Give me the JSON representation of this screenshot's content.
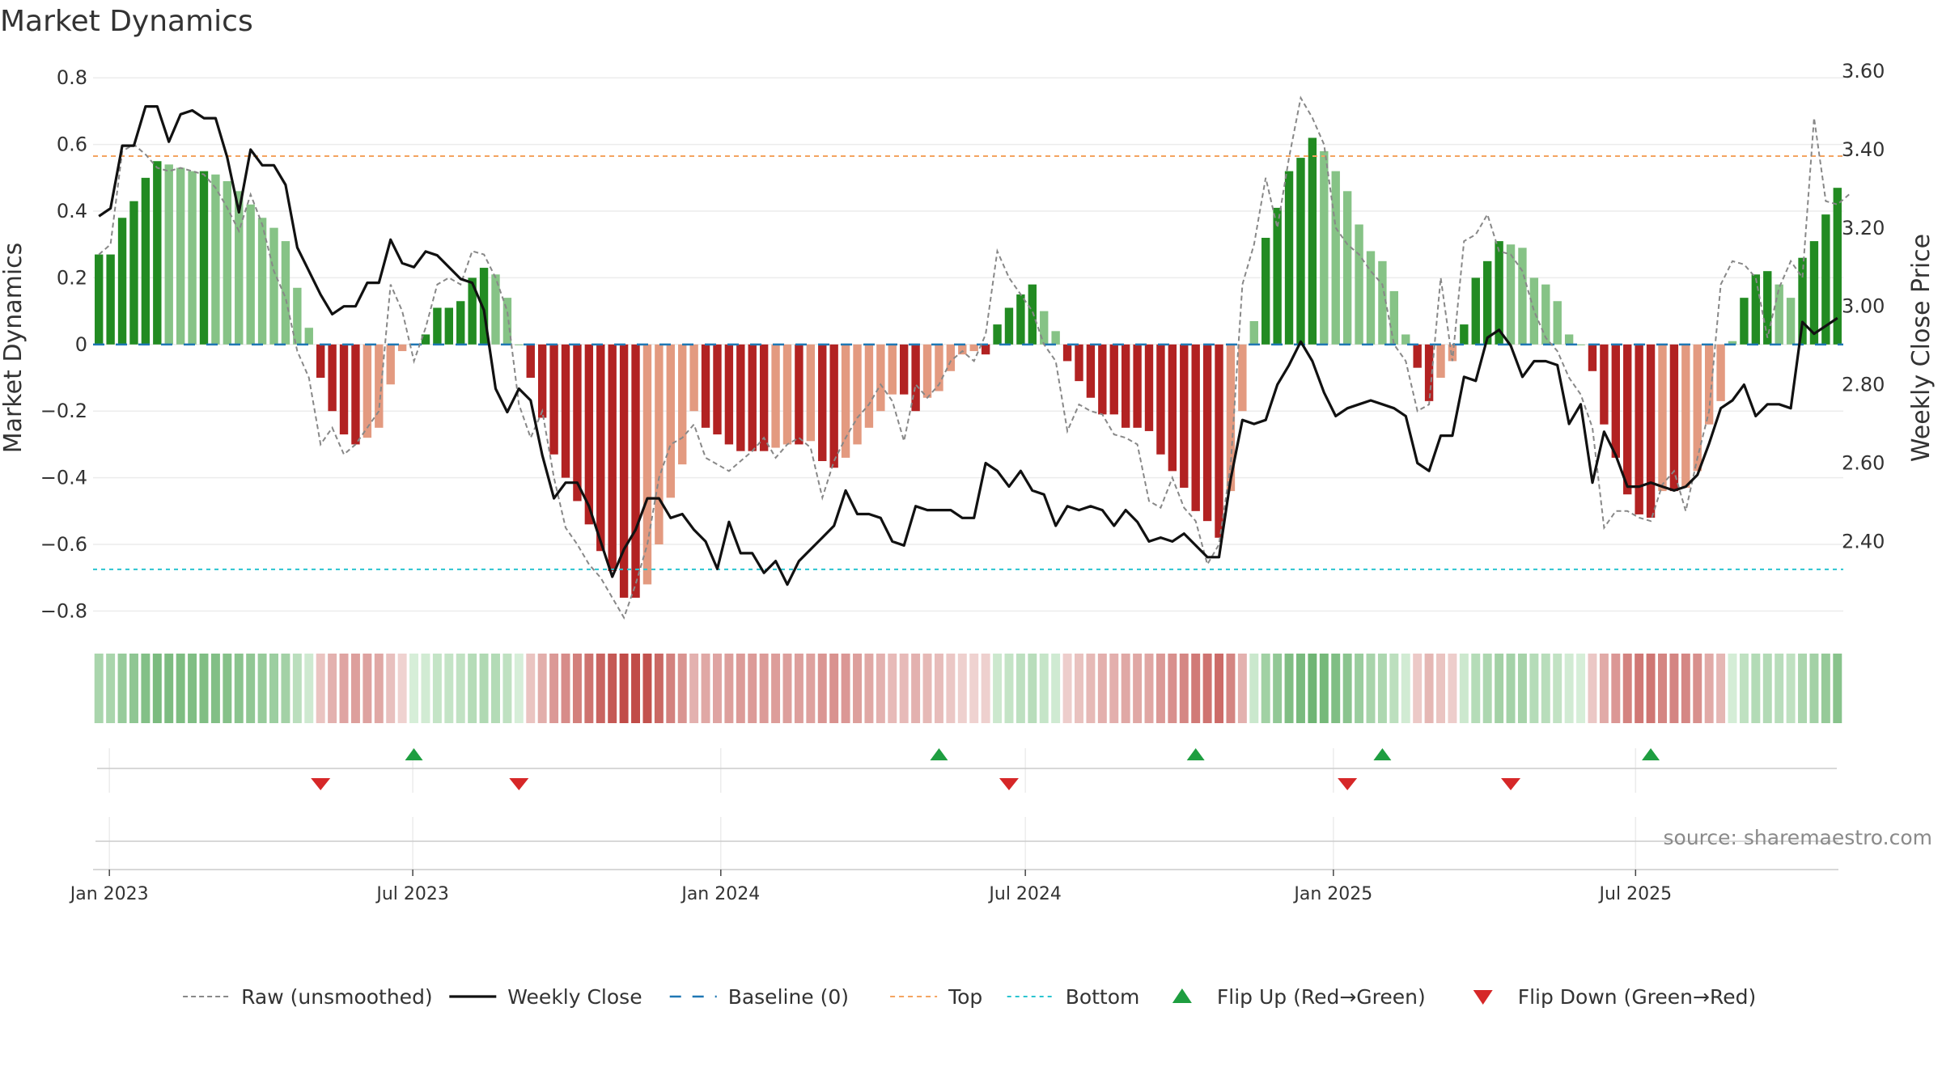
{
  "chart_data": {
    "type": "bar",
    "title": "Market Dynamics",
    "ylabel_left": "Market Dynamics",
    "ylabel_right": "Weekly Close Price",
    "xlabel": "",
    "ylim": [
      -0.85,
      0.82
    ],
    "ylim_right": [
      2.18,
      3.6
    ],
    "yticks_left": [
      0.8,
      0.6,
      0.4,
      0.2,
      0,
      -0.2,
      -0.4,
      -0.6,
      -0.8
    ],
    "yticks_left_labels": [
      "0.8",
      "0.6",
      "0.4",
      "0.2",
      "0",
      "−0.2",
      "−0.4",
      "−0.6",
      "−0.8"
    ],
    "yticks_right": [
      3.6,
      3.4,
      3.2,
      3.0,
      2.8,
      2.6,
      2.4
    ],
    "yticks_right_labels": [
      "3.60",
      "3.40",
      "3.20",
      "3.00",
      "2.80",
      "2.60",
      "2.40"
    ],
    "x_ticks": [
      {
        "label": "Jan 2023",
        "week": 1.4
      },
      {
        "label": "Jul 2023",
        "week": 27.4
      },
      {
        "label": "Jan 2024",
        "week": 53.8
      },
      {
        "label": "Jul 2024",
        "week": 79.9
      },
      {
        "label": "Jan 2025",
        "week": 106.3
      },
      {
        "label": "Jul 2025",
        "week": 132.2
      }
    ],
    "top_threshold": 0.565,
    "bottom_threshold": -0.675,
    "baseline": 0,
    "series": [
      {
        "name": "Market Dynamics (smoothed)",
        "values": [
          0.27,
          0.27,
          0.38,
          0.43,
          0.5,
          0.55,
          0.54,
          0.53,
          0.52,
          0.52,
          0.51,
          0.49,
          0.46,
          0.42,
          0.38,
          0.35,
          0.31,
          0.17,
          0.05,
          -0.1,
          -0.2,
          -0.27,
          -0.3,
          -0.28,
          -0.25,
          -0.12,
          -0.02,
          0.0,
          0.03,
          0.11,
          0.11,
          0.13,
          0.2,
          0.23,
          0.21,
          0.14,
          0.0,
          -0.1,
          -0.22,
          -0.33,
          -0.4,
          -0.47,
          -0.54,
          -0.62,
          -0.68,
          -0.76,
          -0.76,
          -0.72,
          -0.6,
          -0.46,
          -0.36,
          -0.2,
          -0.25,
          -0.27,
          -0.3,
          -0.32,
          -0.32,
          -0.32,
          -0.31,
          -0.3,
          -0.3,
          -0.29,
          -0.35,
          -0.37,
          -0.34,
          -0.3,
          -0.25,
          -0.2,
          -0.15,
          -0.15,
          -0.2,
          -0.16,
          -0.14,
          -0.08,
          -0.03,
          -0.02,
          -0.03,
          0.06,
          0.11,
          0.15,
          0.18,
          0.1,
          0.04,
          -0.05,
          -0.11,
          -0.16,
          -0.21,
          -0.21,
          -0.25,
          -0.25,
          -0.26,
          -0.33,
          -0.38,
          -0.43,
          -0.5,
          -0.53,
          -0.58,
          -0.44,
          -0.2,
          0.07,
          0.32,
          0.41,
          0.52,
          0.56,
          0.62,
          0.58,
          0.52,
          0.46,
          0.36,
          0.28,
          0.25,
          0.16,
          0.03,
          -0.07,
          -0.17,
          -0.1,
          -0.05,
          0.06,
          0.2,
          0.25,
          0.31,
          0.3,
          0.29,
          0.2,
          0.18,
          0.13,
          0.03,
          0.0,
          -0.08,
          -0.24,
          -0.34,
          -0.45,
          -0.51,
          -0.52,
          -0.44,
          -0.44,
          -0.43,
          -0.38,
          -0.24,
          -0.17,
          0.01,
          0.14,
          0.21,
          0.22,
          0.18,
          0.14,
          0.26,
          0.31,
          0.39,
          0.47
        ]
      },
      {
        "name": "Raw (unsmoothed)",
        "values": [
          0.27,
          0.3,
          0.58,
          0.6,
          0.57,
          0.53,
          0.52,
          0.53,
          0.52,
          0.51,
          0.47,
          0.41,
          0.34,
          0.45,
          0.36,
          0.22,
          0.14,
          -0.02,
          -0.1,
          -0.3,
          -0.25,
          -0.33,
          -0.3,
          -0.25,
          -0.2,
          0.18,
          0.1,
          -0.05,
          0.05,
          0.18,
          0.2,
          0.18,
          0.28,
          0.27,
          0.2,
          0.1,
          -0.18,
          -0.28,
          -0.2,
          -0.4,
          -0.55,
          -0.6,
          -0.66,
          -0.7,
          -0.76,
          -0.82,
          -0.72,
          -0.6,
          -0.4,
          -0.3,
          -0.28,
          -0.24,
          -0.34,
          -0.36,
          -0.38,
          -0.35,
          -0.32,
          -0.28,
          -0.34,
          -0.3,
          -0.28,
          -0.31,
          -0.46,
          -0.35,
          -0.28,
          -0.22,
          -0.18,
          -0.12,
          -0.17,
          -0.29,
          -0.12,
          -0.16,
          -0.12,
          -0.05,
          -0.02,
          -0.05,
          0.03,
          0.28,
          0.2,
          0.15,
          0.1,
          0.0,
          -0.05,
          -0.26,
          -0.18,
          -0.2,
          -0.21,
          -0.27,
          -0.28,
          -0.3,
          -0.47,
          -0.49,
          -0.4,
          -0.49,
          -0.53,
          -0.66,
          -0.6,
          -0.36,
          0.18,
          0.3,
          0.5,
          0.35,
          0.56,
          0.74,
          0.68,
          0.6,
          0.35,
          0.3,
          0.27,
          0.22,
          0.18,
          0.0,
          -0.05,
          -0.2,
          -0.18,
          0.2,
          -0.05,
          0.31,
          0.33,
          0.39,
          0.28,
          0.27,
          0.22,
          0.1,
          0.02,
          -0.02,
          -0.1,
          -0.15,
          -0.25,
          -0.55,
          -0.5,
          -0.5,
          -0.52,
          -0.53,
          -0.42,
          -0.38,
          -0.5,
          -0.34,
          -0.2,
          0.18,
          0.25,
          0.24,
          0.2,
          0.02,
          0.17,
          0.25,
          0.2,
          0.68,
          0.43,
          0.42,
          0.45
        ]
      },
      {
        "name": "Weekly Close",
        "axis": "right",
        "values": [
          3.23,
          3.25,
          3.41,
          3.41,
          3.51,
          3.51,
          3.42,
          3.49,
          3.5,
          3.48,
          3.48,
          3.38,
          3.24,
          3.4,
          3.36,
          3.36,
          3.31,
          3.15,
          3.09,
          3.03,
          2.98,
          3.0,
          3.0,
          3.06,
          3.06,
          3.17,
          3.11,
          3.1,
          3.14,
          3.13,
          3.1,
          3.07,
          3.06,
          2.99,
          2.79,
          2.73,
          2.79,
          2.76,
          2.62,
          2.51,
          2.55,
          2.55,
          2.49,
          2.4,
          2.31,
          2.38,
          2.43,
          2.51,
          2.51,
          2.46,
          2.47,
          2.43,
          2.4,
          2.33,
          2.45,
          2.37,
          2.37,
          2.32,
          2.35,
          2.29,
          2.35,
          2.38,
          2.41,
          2.44,
          2.53,
          2.47,
          2.47,
          2.46,
          2.4,
          2.39,
          2.49,
          2.48,
          2.48,
          2.48,
          2.46,
          2.46,
          2.6,
          2.58,
          2.54,
          2.58,
          2.53,
          2.52,
          2.44,
          2.49,
          2.48,
          2.49,
          2.48,
          2.44,
          2.48,
          2.45,
          2.4,
          2.41,
          2.4,
          2.42,
          2.39,
          2.36,
          2.36,
          2.56,
          2.71,
          2.7,
          2.71,
          2.8,
          2.85,
          2.91,
          2.86,
          2.78,
          2.72,
          2.74,
          2.75,
          2.76,
          2.75,
          2.74,
          2.72,
          2.6,
          2.58,
          2.67,
          2.67,
          2.82,
          2.81,
          2.92,
          2.94,
          2.9,
          2.82,
          2.86,
          2.86,
          2.85,
          2.7,
          2.75,
          2.55,
          2.68,
          2.62,
          2.54,
          2.54,
          2.55,
          2.54,
          2.53,
          2.54,
          2.57,
          2.65,
          2.74,
          2.76,
          2.8,
          2.72,
          2.75,
          2.75,
          2.74,
          2.96,
          2.93,
          2.95,
          2.97
        ]
      }
    ],
    "regime_strip": "Per-week regime colour by sign and magnitude of the smoothed value (green = positive, red = negative, darker = stronger)",
    "flip_up_weeks": [
      27,
      72,
      94,
      110,
      133
    ],
    "flip_down_weeks": [
      19,
      36,
      78,
      107,
      121
    ],
    "legend_position": "bottom-center",
    "legend": [
      {
        "label": "Raw (unsmoothed)",
        "kind": "dashed-gray"
      },
      {
        "label": "Weekly Close",
        "kind": "solid-black"
      },
      {
        "label": "Baseline (0)",
        "kind": "dashed-blue"
      },
      {
        "label": "Top",
        "kind": "dotted-orange"
      },
      {
        "label": "Bottom",
        "kind": "dotted-cyan"
      },
      {
        "label": "Flip Up (Red→Green)",
        "kind": "triangle-up"
      },
      {
        "label": "Flip Down (Green→Red)",
        "kind": "triangle-down"
      }
    ],
    "source": "source: sharemaestro.com",
    "colors": {
      "green_strong": "#228B22",
      "green_light": "#86C386",
      "red_strong": "#B22222",
      "red_light": "#E39A80",
      "price": "#111111",
      "raw": "#888888",
      "baseline": "#1F77B4",
      "top": "#F4A460",
      "bottom": "#2AC4D0",
      "flip_up": "#1E9E40",
      "flip_down": "#D62728"
    }
  }
}
